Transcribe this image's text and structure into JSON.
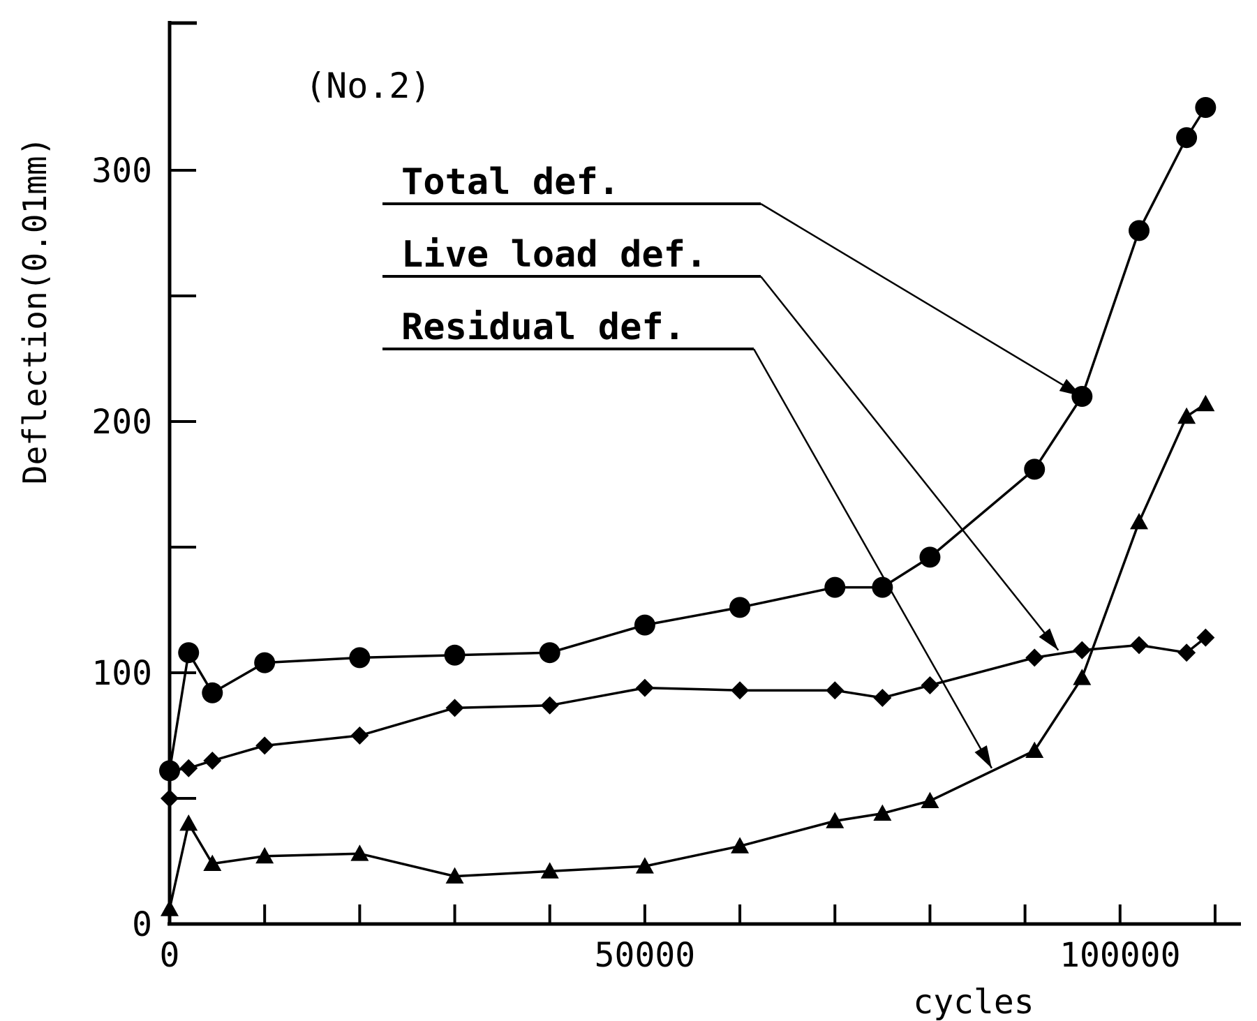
{
  "chart_data": {
    "type": "line",
    "annotation": "(No.2)",
    "xlabel": "cycles",
    "ylabel": "Deflection(0.01mm)",
    "xlim": [
      0,
      112000
    ],
    "ylim": [
      0,
      350
    ],
    "x_ticks": [
      0,
      10000,
      20000,
      30000,
      40000,
      50000,
      60000,
      70000,
      80000,
      90000,
      100000,
      110000
    ],
    "x_tick_labels": [
      {
        "value": 0,
        "label": "0"
      },
      {
        "value": 50000,
        "label": "50000"
      },
      {
        "value": 100000,
        "label": "100000"
      }
    ],
    "y_ticks": [
      0,
      50,
      100,
      150,
      200,
      250,
      300
    ],
    "y_tick_labels": [
      {
        "value": 0,
        "label": "0"
      },
      {
        "value": 100,
        "label": "100"
      },
      {
        "value": 200,
        "label": "200"
      },
      {
        "value": 300,
        "label": "300"
      }
    ],
    "grid": false,
    "legend_position": "top-center",
    "series": [
      {
        "name": "Total def.",
        "marker": "circle",
        "points": [
          [
            0,
            61
          ],
          [
            2000,
            108
          ],
          [
            4500,
            92
          ],
          [
            10000,
            104
          ],
          [
            20000,
            106
          ],
          [
            30000,
            107
          ],
          [
            40000,
            108
          ],
          [
            50000,
            119
          ],
          [
            60000,
            126
          ],
          [
            70000,
            134
          ],
          [
            75000,
            134
          ],
          [
            80000,
            146
          ],
          [
            91000,
            181
          ],
          [
            96000,
            210
          ],
          [
            102000,
            276
          ],
          [
            107000,
            313
          ],
          [
            109000,
            325
          ]
        ]
      },
      {
        "name": "Live load def.",
        "marker": "diamond",
        "points": [
          [
            0,
            61
          ],
          [
            2000,
            62
          ],
          [
            4500,
            65
          ],
          [
            10000,
            71
          ],
          [
            20000,
            75
          ],
          [
            30000,
            86
          ],
          [
            40000,
            87
          ],
          [
            50000,
            94
          ],
          [
            60000,
            93
          ],
          [
            70000,
            93
          ],
          [
            75000,
            90
          ],
          [
            80000,
            95
          ],
          [
            91000,
            106
          ],
          [
            96000,
            109
          ],
          [
            102000,
            111
          ],
          [
            107000,
            108
          ],
          [
            109000,
            114
          ]
        ]
      },
      {
        "name": "Residual def.",
        "marker": "triangle",
        "points": [
          [
            0,
            6
          ],
          [
            2000,
            40
          ],
          [
            4500,
            24
          ],
          [
            10000,
            27
          ],
          [
            20000,
            28
          ],
          [
            30000,
            19
          ],
          [
            40000,
            21
          ],
          [
            50000,
            23
          ],
          [
            60000,
            31
          ],
          [
            70000,
            41
          ],
          [
            75000,
            44
          ],
          [
            80000,
            49
          ],
          [
            91000,
            69
          ],
          [
            96000,
            98
          ],
          [
            102000,
            160
          ],
          [
            107000,
            202
          ],
          [
            109000,
            207
          ]
        ]
      }
    ],
    "legend": [
      {
        "label": "Total def.",
        "target": [
          96000,
          210
        ]
      },
      {
        "label": "Live load def.",
        "target": [
          93500,
          109
        ]
      },
      {
        "label": "Residual def.",
        "target": [
          86500,
          62
        ]
      }
    ],
    "extra_points": [
      {
        "series": "Live load def.",
        "x": 0,
        "y": 50
      }
    ]
  }
}
